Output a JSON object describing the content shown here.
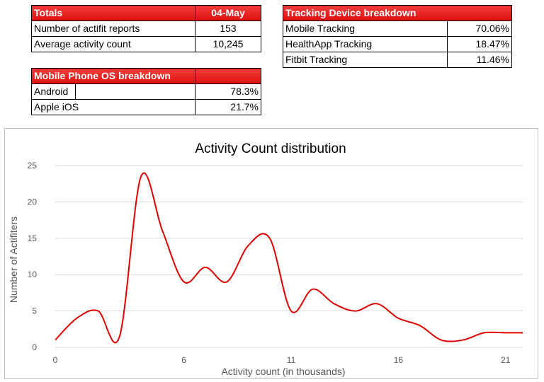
{
  "totals": {
    "header_label": "Totals",
    "header_date": "04-May",
    "rows": [
      {
        "label": "Number of actifit reports",
        "value": "153"
      },
      {
        "label": "Average activity count",
        "value": "10,245"
      }
    ]
  },
  "os_breakdown": {
    "title": "Mobile Phone OS breakdown",
    "rows": [
      {
        "label": "Android",
        "value": "78.3%"
      },
      {
        "label": "Apple iOS",
        "value": "21.7%"
      }
    ]
  },
  "device_breakdown": {
    "title": "Tracking Device breakdown",
    "rows": [
      {
        "label": "Mobile Tracking",
        "value": "70.06%"
      },
      {
        "label": "HealthApp Tracking",
        "value": "18.47%"
      },
      {
        "label": "Fitbit Tracking",
        "value": "11.46%"
      }
    ]
  },
  "colors": {
    "header_red": "#e01010",
    "line_red": "#e00000",
    "grid": "#d9d9d9",
    "axis_text": "#595959"
  },
  "chart_data": {
    "type": "line",
    "title": "Activity Count distribution",
    "xlabel": "Activity count (in thousands)",
    "ylabel": "Number of Actifiters",
    "x_ticks": [
      0,
      6,
      11,
      16,
      21
    ],
    "y_ticks": [
      0,
      5,
      10,
      15,
      20,
      25
    ],
    "xlim": [
      0,
      21.8
    ],
    "ylim": [
      0,
      25
    ],
    "grid": true,
    "smooth": true,
    "series": [
      {
        "x": [
          0,
          1,
          2,
          3,
          4,
          5,
          6,
          7,
          8,
          9,
          10,
          11,
          12,
          13,
          14,
          15,
          16,
          17,
          18,
          19,
          20,
          21,
          21.8
        ],
        "values": [
          1,
          4,
          5,
          1.5,
          23.5,
          16,
          9,
          11,
          9,
          14,
          15,
          5,
          8,
          6,
          5,
          6,
          4,
          3,
          1,
          1,
          2,
          2,
          2
        ]
      }
    ]
  }
}
